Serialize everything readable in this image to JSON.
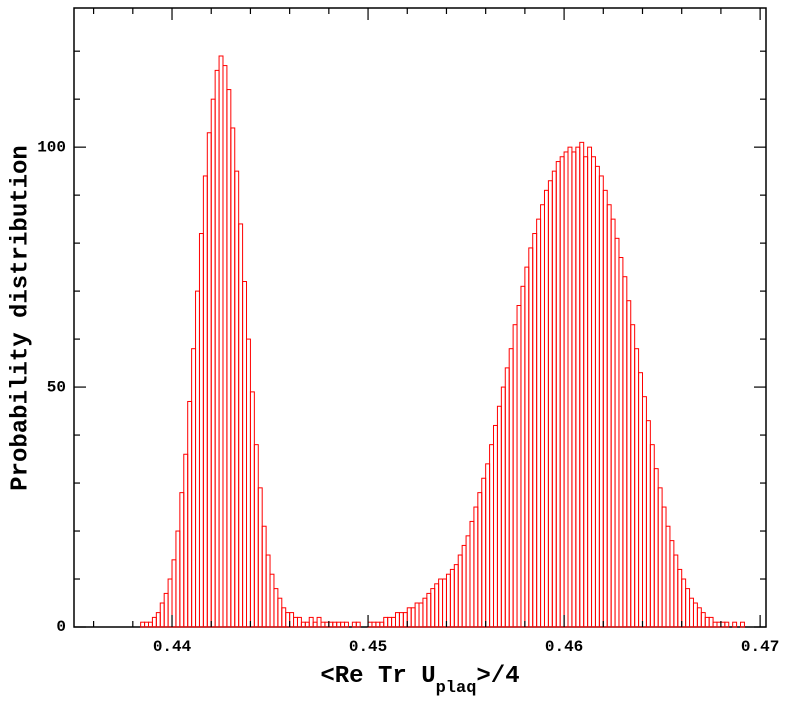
{
  "chart_data": {
    "type": "histogram",
    "xlabel": [
      "<Re Tr U",
      "plaq",
      ">/4"
    ],
    "ylabel": "Probability distribution",
    "color": "#ff0000",
    "xlim": [
      0.435,
      0.4703
    ],
    "ylim": [
      0,
      129
    ],
    "xticks": [
      0.44,
      0.45,
      0.46,
      0.47
    ],
    "yticks": [
      0,
      50,
      100
    ],
    "xminorticks": [
      0.436,
      0.438,
      0.442,
      0.444,
      0.446,
      0.448,
      0.452,
      0.454,
      0.456,
      0.458,
      0.462,
      0.464,
      0.466,
      0.468
    ],
    "yminorticks": [
      10,
      20,
      30,
      40,
      60,
      70,
      80,
      90,
      110,
      120
    ],
    "bins": [
      0.438,
      0.4382,
      0.4384,
      0.4386,
      0.4388,
      0.439,
      0.4392,
      0.4394,
      0.4396,
      0.4398,
      0.44,
      0.4402,
      0.4404,
      0.4406,
      0.4408,
      0.441,
      0.4412,
      0.4414,
      0.4416,
      0.4418,
      0.442,
      0.4422,
      0.4424,
      0.4426,
      0.4428,
      0.443,
      0.4432,
      0.4434,
      0.4436,
      0.4438,
      0.444,
      0.4442,
      0.4444,
      0.4446,
      0.4448,
      0.445,
      0.4452,
      0.4454,
      0.4456,
      0.4458,
      0.446,
      0.4462,
      0.4464,
      0.4466,
      0.4468,
      0.447,
      0.4472,
      0.4474,
      0.4476,
      0.4478,
      0.448,
      0.4482,
      0.4484,
      0.4486,
      0.4488,
      0.449,
      0.4492,
      0.4494,
      0.4496,
      0.4498,
      0.45,
      0.4502,
      0.4504,
      0.4506,
      0.4508,
      0.451,
      0.4512,
      0.4514,
      0.4516,
      0.4518,
      0.452,
      0.4522,
      0.4524,
      0.4526,
      0.4528,
      0.453,
      0.4532,
      0.4534,
      0.4536,
      0.4538,
      0.454,
      0.4542,
      0.4544,
      0.4546,
      0.4548,
      0.455,
      0.4552,
      0.4554,
      0.4556,
      0.4558,
      0.456,
      0.4562,
      0.4564,
      0.4566,
      0.4568,
      0.457,
      0.4572,
      0.4574,
      0.4576,
      0.4578,
      0.458,
      0.4582,
      0.4584,
      0.4586,
      0.4588,
      0.459,
      0.4592,
      0.4594,
      0.4596,
      0.4598,
      0.46,
      0.4602,
      0.4604,
      0.4606,
      0.4608,
      0.461,
      0.4612,
      0.4614,
      0.4616,
      0.4618,
      0.462,
      0.4622,
      0.4624,
      0.4626,
      0.4628,
      0.463,
      0.4632,
      0.4634,
      0.4636,
      0.4638,
      0.464,
      0.4642,
      0.4644,
      0.4646,
      0.4648,
      0.465,
      0.4652,
      0.4654,
      0.4656,
      0.4658,
      0.466,
      0.4662,
      0.4664,
      0.4666,
      0.4668,
      0.467,
      0.4672,
      0.4674,
      0.4676,
      0.4678,
      0.468,
      0.4682,
      0.4684,
      0.4686,
      0.4688,
      0.469,
      0.4692,
      0.4694,
      0.4696
    ],
    "values": [
      0,
      0,
      1,
      1,
      1,
      2,
      3,
      5,
      7,
      10,
      14,
      20,
      28,
      36,
      47,
      58,
      70,
      82,
      94,
      103,
      110,
      116,
      119,
      117,
      112,
      104,
      95,
      84,
      72,
      60,
      49,
      38,
      29,
      21,
      15,
      11,
      8,
      6,
      4,
      3,
      3,
      2,
      2,
      1,
      1,
      2,
      1,
      2,
      1,
      1,
      1,
      1,
      1,
      1,
      1,
      0,
      1,
      1,
      0,
      0,
      1,
      1,
      1,
      1,
      2,
      2,
      2,
      3,
      3,
      3,
      4,
      4,
      5,
      5,
      6,
      7,
      8,
      9,
      10,
      10,
      11,
      12,
      13,
      15,
      17,
      19,
      22,
      25,
      28,
      31,
      34,
      38,
      42,
      46,
      50,
      54,
      58,
      63,
      67,
      71,
      75,
      79,
      82,
      85,
      88,
      91,
      93,
      95,
      97,
      98,
      99,
      100,
      99,
      100,
      101,
      98,
      100,
      98,
      96,
      94,
      91,
      88,
      85,
      81,
      77,
      73,
      68,
      63,
      58,
      53,
      48,
      43,
      38,
      33,
      29,
      25,
      21,
      18,
      15,
      12,
      10,
      8,
      6,
      5,
      4,
      3,
      2,
      2,
      1,
      1,
      1,
      1,
      0,
      1,
      0,
      1,
      0,
      0
    ]
  }
}
